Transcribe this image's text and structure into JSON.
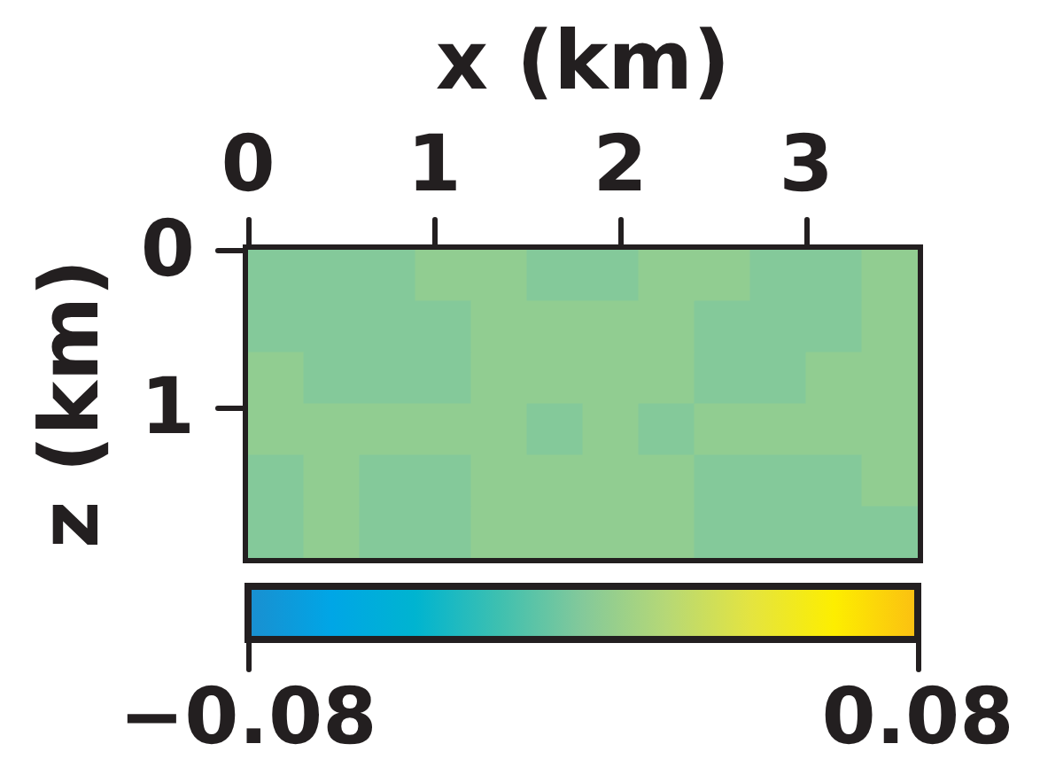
{
  "chart_data": {
    "type": "heatmap",
    "xlabel": "x (km)",
    "ylabel": "z (km)",
    "cells": [
      [
        0,
        0,
        0,
        0.005,
        0.005,
        0,
        0,
        0.005,
        0.005,
        0,
        0,
        0.005
      ],
      [
        0,
        0,
        0,
        0,
        0.005,
        0.005,
        0.005,
        0.005,
        0,
        0,
        0,
        0.005
      ],
      [
        0.005,
        0,
        0,
        0,
        0.005,
        0.005,
        0.005,
        0.005,
        0,
        0,
        0.005,
        0.005
      ],
      [
        0.005,
        0.005,
        0.005,
        0.005,
        0.005,
        0,
        0.005,
        0,
        0.005,
        0.005,
        0.005,
        0.005
      ],
      [
        0,
        0.005,
        0,
        0,
        0.005,
        0.005,
        0.005,
        0.005,
        0,
        0,
        0,
        0.005
      ],
      [
        0,
        0.005,
        0,
        0,
        0.005,
        0.005,
        0.005,
        0.005,
        0,
        0,
        0,
        0
      ]
    ],
    "xlim": [
      0,
      3.6
    ],
    "xticks": [
      0,
      1,
      2,
      3
    ],
    "ylim": [
      1.95,
      0
    ],
    "yticks": [
      0,
      1
    ],
    "clim": [
      -0.08,
      0.08
    ],
    "cticks": [
      {
        "value": -0.08,
        "label": "−0.08"
      },
      0.08
    ]
  }
}
